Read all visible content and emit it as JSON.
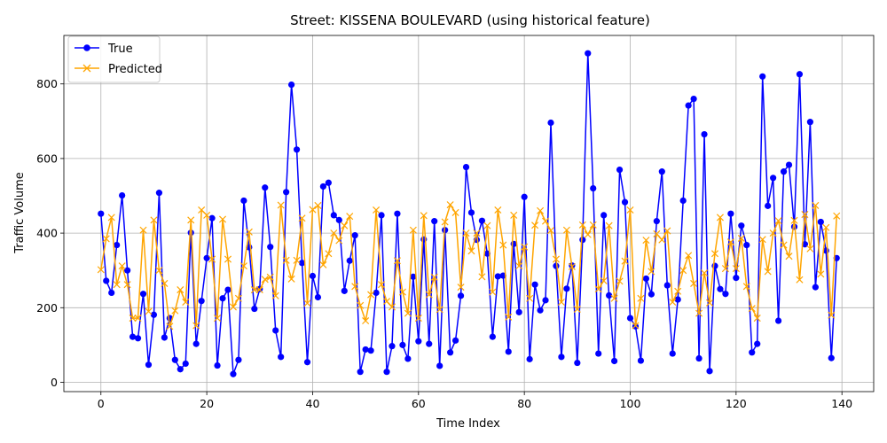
{
  "chart_data": {
    "type": "line",
    "title": "Street: KISSENA BOULEVARD (using historical feature)",
    "xlabel": "Time Index",
    "ylabel": "Traffic Volume",
    "xlim": [
      -7,
      146
    ],
    "ylim": [
      -25,
      930
    ],
    "xticks": [
      0,
      20,
      40,
      60,
      80,
      100,
      120,
      140
    ],
    "yticks": [
      0,
      200,
      400,
      600,
      800
    ],
    "grid": true,
    "legend_position": "top-left",
    "series": [
      {
        "name": "True",
        "color": "#0000ff",
        "marker": "circle",
        "values": [
          452,
          272,
          240,
          368,
          501,
          300,
          122,
          118,
          237,
          47,
          181,
          508,
          120,
          172,
          60,
          35,
          50,
          401,
          103,
          218,
          333,
          440,
          45,
          225,
          248,
          22,
          60,
          487,
          362,
          197,
          250,
          522,
          363,
          139,
          68,
          510,
          798,
          624,
          320,
          54,
          285,
          228,
          525,
          535,
          448,
          435,
          245,
          326,
          394,
          28,
          88,
          85,
          240,
          448,
          28,
          97,
          452,
          100,
          63,
          283,
          110,
          383,
          103,
          432,
          44,
          408,
          80,
          112,
          232,
          577,
          455,
          382,
          433,
          345,
          122,
          284,
          286,
          82,
          371,
          188,
          497,
          62,
          262,
          193,
          220,
          696,
          312,
          68,
          251,
          313,
          52,
          382,
          882,
          520,
          77,
          448,
          233,
          57,
          570,
          483,
          172,
          150,
          58,
          278,
          236,
          432,
          565,
          260,
          77,
          222,
          487,
          742,
          760,
          64,
          665,
          30,
          312,
          250,
          237,
          452,
          280,
          420,
          368,
          80,
          103,
          820,
          473,
          548,
          165,
          565,
          583,
          417,
          826,
          370,
          698,
          255,
          430,
          353,
          65,
          333
        ]
      },
      {
        "name": "Predicted",
        "color": "#ffa500",
        "marker": "x",
        "values": [
          302,
          385,
          442,
          262,
          312,
          262,
          172,
          172,
          408,
          190,
          435,
          300,
          265,
          150,
          192,
          248,
          215,
          435,
          152,
          462,
          448,
          330,
          172,
          437,
          330,
          202,
          225,
          312,
          403,
          248,
          248,
          276,
          282,
          232,
          475,
          327,
          277,
          327,
          440,
          212,
          463,
          474,
          315,
          345,
          400,
          380,
          420,
          445,
          257,
          206,
          165,
          235,
          462,
          262,
          217,
          202,
          326,
          242,
          185,
          408,
          172,
          447,
          235,
          282,
          195,
          430,
          476,
          455,
          255,
          400,
          352,
          400,
          283,
          420,
          242,
          462,
          368,
          175,
          448,
          312,
          363,
          225,
          421,
          460,
          432,
          407,
          330,
          215,
          408,
          310,
          196,
          422,
          396,
          422,
          250,
          272,
          420,
          225,
          271,
          325,
          462,
          152,
          225,
          381,
          297,
          398,
          382,
          406,
          215,
          244,
          300,
          340,
          265,
          185,
          293,
          213,
          345,
          442,
          305,
          376,
          305,
          386,
          257,
          198,
          172,
          383,
          297,
          400,
          433,
          368,
          338,
          434,
          275,
          450,
          358,
          474,
          290,
          415,
          180,
          446
        ]
      }
    ]
  }
}
